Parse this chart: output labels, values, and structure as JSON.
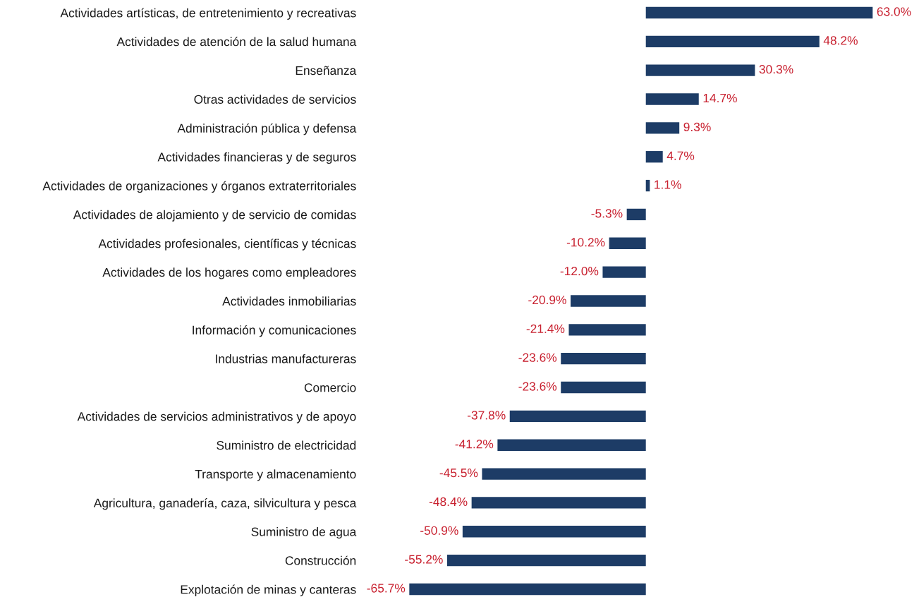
{
  "chart_data": {
    "type": "bar",
    "orientation": "horizontal",
    "tick_labels": "y",
    "categories": [
      "Actividades artísticas, de entretenimiento y recreativas",
      "Actividades de atención de la salud humana",
      "Enseñanza",
      "Otras actividades de servicios",
      "Administración pública y defensa",
      "Actividades financieras y de seguros",
      "Actividades de organizaciones y órganos extraterritoriales",
      "Actividades de alojamiento y de servicio de comidas",
      "Actividades profesionales, científicas y técnicas",
      "Actividades de los hogares como empleadores",
      "Actividades inmobiliarias",
      "Información y comunicaciones",
      "Industrias manufactureras",
      "Comercio",
      "Actividades de servicios administrativos y de apoyo",
      "Suministro de electricidad",
      "Transporte y almacenamiento",
      "Agricultura, ganadería, caza, silvicultura y pesca",
      "Suministro de agua",
      "Construcción",
      "Explotación de minas y canteras"
    ],
    "values": [
      63.0,
      48.2,
      30.3,
      14.7,
      9.3,
      4.7,
      1.1,
      -5.3,
      -10.2,
      -12.0,
      -20.9,
      -21.4,
      -23.6,
      -23.6,
      -37.8,
      -41.2,
      -45.5,
      -48.4,
      -50.9,
      -55.2,
      -65.7
    ],
    "value_labels": [
      "63.0%",
      "48.2%",
      "30.3%",
      "14.7%",
      "9.3%",
      "4.7%",
      "1.1%",
      "-5.3%",
      "-10.2%",
      "-12.0%",
      "-20.9%",
      "-21.4%",
      "-23.6%",
      "-23.6%",
      "-37.8%",
      "-41.2%",
      "-45.5%",
      "-48.4%",
      "-50.9%",
      "-55.2%",
      "-65.7%"
    ],
    "color": "#1d3c66"
  }
}
